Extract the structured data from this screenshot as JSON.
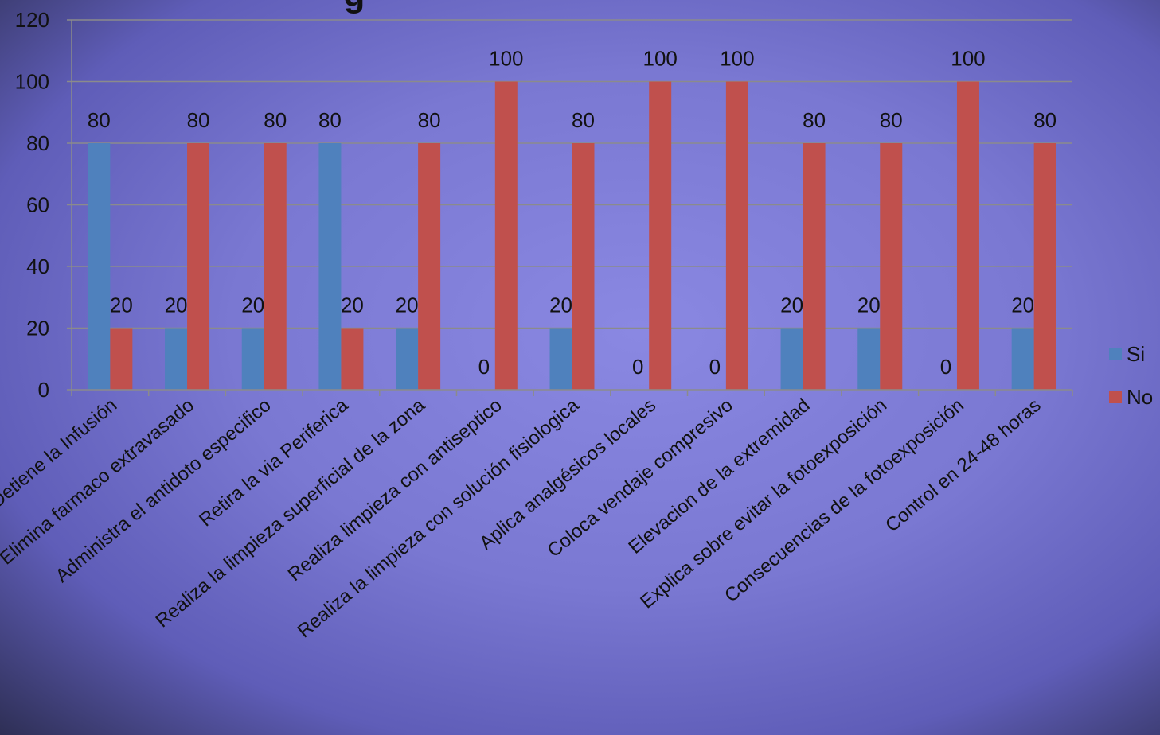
{
  "chart_data": {
    "type": "bar",
    "title_fragment": "g",
    "categories": [
      "Detiene la Infusión",
      "Elimina farmaco extravasado",
      "Administra el antidoto especifico",
      "Retira la via Periferica",
      "Realiza la limpieza superficial de la zona",
      "Realiza limpieza con antiseptico",
      "Realiza la limpieza con solución fisiologica",
      "Aplica analgésicos locales",
      "Coloca vendaje compresivo",
      "Elevacion de la  extremidad",
      "Explica sobre evitar la fotoexposición",
      "Consecuencias de la fotoexposición",
      "Control en 24-48 horas"
    ],
    "series": [
      {
        "name": "Si",
        "color": "#4f81bd",
        "values": [
          80,
          20,
          20,
          80,
          20,
          0,
          20,
          0,
          0,
          20,
          20,
          0,
          20
        ]
      },
      {
        "name": "No",
        "color": "#c0504d",
        "values": [
          20,
          80,
          80,
          20,
          80,
          100,
          80,
          100,
          100,
          80,
          80,
          100,
          80
        ]
      }
    ],
    "ylim": [
      0,
      120
    ],
    "yticks": [
      0,
      20,
      40,
      60,
      80,
      100,
      120
    ],
    "grid": true,
    "legend": "right"
  },
  "colors": {
    "gridline": "#8b8b8b",
    "axis": "#8b8b8b",
    "background_flower": "#8a88e2"
  }
}
